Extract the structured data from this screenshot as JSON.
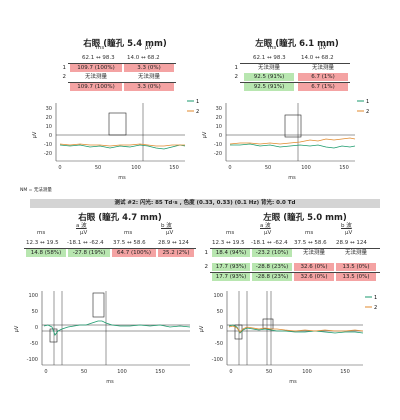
{
  "top_left": {
    "title": "右眼 (瞳孔 5.4 mm)",
    "hdr_left": "ms",
    "hdr_right": "µV",
    "range_left": "62.1 ↔ 98.3",
    "range_right": "14.0 ↔ 68.2",
    "rows": [
      {
        "label": "1",
        "a": "109.7 (100%)",
        "b": "3.3 (0%)"
      },
      {
        "label": "2",
        "a": "无法测量",
        "b": "无法测量"
      },
      {
        "label": "",
        "a": "109.7 (100%)",
        "b": "3.3 (0%)"
      }
    ]
  },
  "top_right": {
    "title": "左眼 (瞳孔 6.1 mm)",
    "hdr_left": "ms",
    "hdr_right": "µV",
    "range_left": "62.1 ↔ 98.3",
    "range_right": "14.0 ↔ 68.2",
    "rows": [
      {
        "label": "1",
        "a": "无法测量",
        "b": "无法测量"
      },
      {
        "label": "2",
        "a": "92.5 (91%)",
        "b": "6.7 (1%)"
      },
      {
        "label": "",
        "a": "92.5 (91%)",
        "b": "6.7 (1%)"
      }
    ]
  },
  "footnote": "NM = 无法测量",
  "banner": "测试 #2:  闪光: 85 Td·s , 色度 (0.33, 0.33) (0.1 Hz)  背光: 0.0 Td",
  "bottom_left": {
    "title": "右眼 (瞳孔 4.7 mm)",
    "group_a": "a 波",
    "group_b": "b 波",
    "units": [
      "ms",
      "µV",
      "ms",
      "µV"
    ],
    "ranges": [
      "12.3 ↔ 19.5",
      "-18.1 ↔ -62.4",
      "37.5 ↔ 58.6",
      "28.9 ↔ 124"
    ],
    "row": [
      "14.8 (58%)",
      "-27.8 (19%)",
      "64.7 (100%)",
      "25.2 (2%)"
    ]
  },
  "bottom_right": {
    "title": "左眼 (瞳孔 5.0 mm)",
    "group_a": "a 波",
    "group_b": "b 波",
    "units": [
      "ms",
      "µV",
      "ms",
      "µV"
    ],
    "ranges": [
      "12.3 ↔ 19.5",
      "-18.1 ↔ -62.4",
      "37.5 ↔ 58.6",
      "28.9 ↔ 124"
    ],
    "rows": [
      {
        "label": "1",
        "cells": [
          "18.4 (94%)",
          "-23.2 (10%)",
          "无法测量",
          "无法测量"
        ]
      },
      {
        "label": "2",
        "cells": [
          "17.7 (93%)",
          "-28.8 (23%)",
          "32.6 (0%)",
          "13.5 (0%)"
        ]
      },
      {
        "label": "",
        "cells": [
          "17.7 (93%)",
          "-28.8 (23%)",
          "32.6 (0%)",
          "13.5 (0%)"
        ]
      }
    ]
  },
  "plots": {
    "ylabel": "µV",
    "xlabel": "ms",
    "top_yticks": [
      "30",
      "20",
      "10",
      "0",
      "-10",
      "-20"
    ],
    "top_xticks": [
      "0",
      "50",
      "100",
      "150"
    ],
    "bottom_yticks": [
      "100",
      "50",
      "0",
      "-50",
      "-100"
    ],
    "bottom_xticks": [
      "0",
      "50",
      "100",
      "150"
    ],
    "legend": [
      "1",
      "2"
    ],
    "colors": {
      "series1": "#1a9a6c",
      "series2": "#e08a2e",
      "marker": "#222222"
    }
  }
}
